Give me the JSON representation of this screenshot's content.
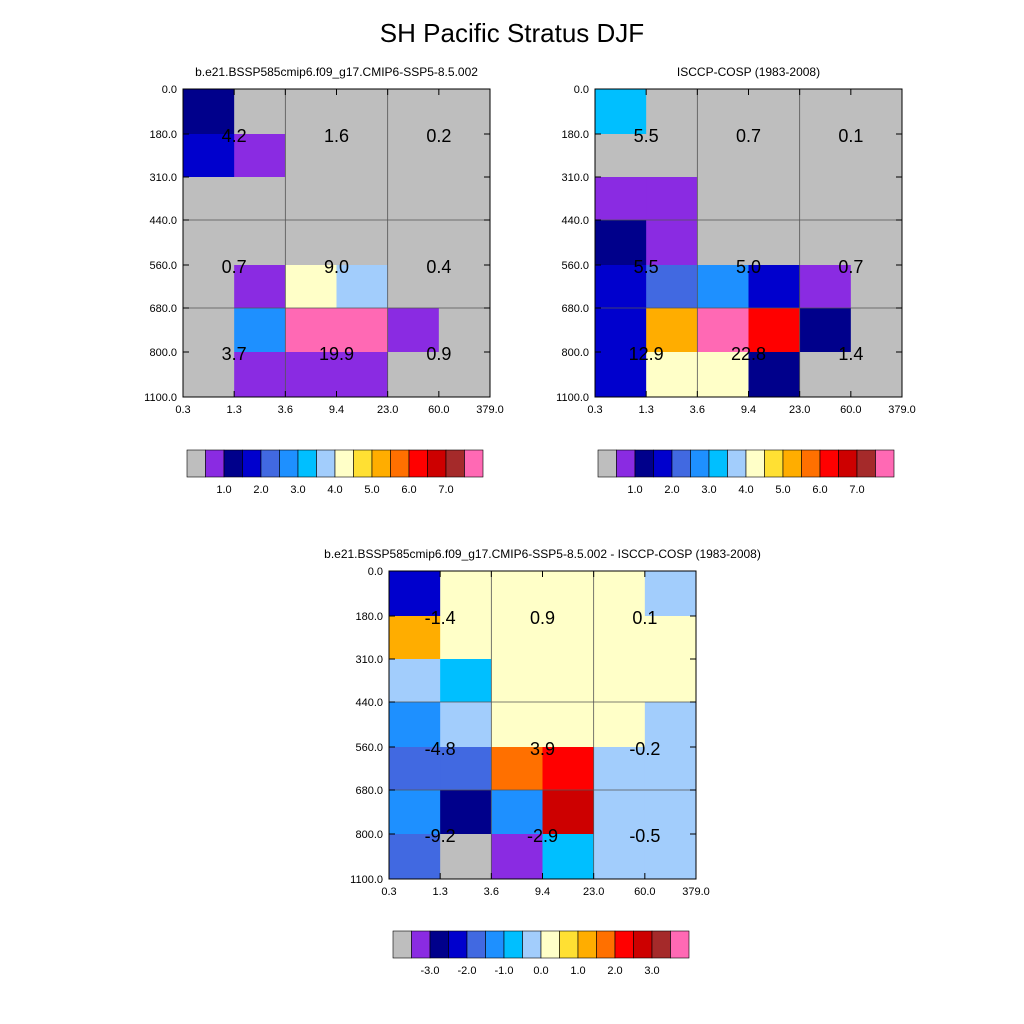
{
  "title": "SH Pacific Stratus DJF",
  "colors": {
    "gray": "#bebebe",
    "purple": "#8a2be2",
    "navy": "#00008b",
    "blue": "#0000cd",
    "royal": "#4169e1",
    "dodger": "#1e90ff",
    "sky": "#00bfff",
    "lightblue": "#a2cdfc",
    "cream": "#ffffc8",
    "yellow": "#ffe033",
    "gold": "#ffad00",
    "orange": "#ff7000",
    "red": "#ff0000",
    "darkred": "#cd0000",
    "brown": "#a52a2a",
    "pink": "#ff69b4"
  },
  "legend_colors": [
    "gray",
    "purple",
    "navy",
    "blue",
    "royal",
    "dodger",
    "sky",
    "lightblue",
    "cream",
    "yellow",
    "gold",
    "orange",
    "red",
    "darkred",
    "brown",
    "pink"
  ],
  "chart_data": [
    {
      "type": "heatmap",
      "title": "b.e21.BSSP585cmip6.f09_g17.CMIP6-SSP5-8.5.002",
      "xticks": [
        "0.3",
        "1.3",
        "3.6",
        "9.4",
        "23.0",
        "60.0",
        "379.0"
      ],
      "yticks": [
        "0.0",
        "180.0",
        "310.0",
        "440.0",
        "560.0",
        "680.0",
        "800.0",
        "1100.0"
      ],
      "cells": [
        [
          "navy",
          "gray",
          "gray",
          "gray",
          "gray",
          "gray"
        ],
        [
          "blue",
          "purple",
          "gray",
          "gray",
          "gray",
          "gray"
        ],
        [
          "gray",
          "gray",
          "gray",
          "gray",
          "gray",
          "gray"
        ],
        [
          "gray",
          "gray",
          "gray",
          "gray",
          "gray",
          "gray"
        ],
        [
          "gray",
          "purple",
          "cream",
          "lightblue",
          "gray",
          "gray"
        ],
        [
          "gray",
          "dodger",
          "pink",
          "pink",
          "purple",
          "gray"
        ],
        [
          "gray",
          "purple",
          "purple",
          "purple",
          "gray",
          "gray"
        ]
      ],
      "values": [
        [
          "4.2",
          "1.6",
          "0.2"
        ],
        [
          "0.7",
          "9.0",
          "0.4"
        ],
        [
          "3.7",
          "19.9",
          "0.9"
        ]
      ],
      "legend_ticks": [
        "1.0",
        "2.0",
        "3.0",
        "4.0",
        "5.0",
        "6.0",
        "7.0"
      ]
    },
    {
      "type": "heatmap",
      "title": "ISCCP-COSP (1983-2008)",
      "xticks": [
        "0.3",
        "1.3",
        "3.6",
        "9.4",
        "23.0",
        "60.0",
        "379.0"
      ],
      "yticks": [
        "0.0",
        "180.0",
        "310.0",
        "440.0",
        "560.0",
        "680.0",
        "800.0",
        "1100.0"
      ],
      "cells": [
        [
          "sky",
          "gray",
          "gray",
          "gray",
          "gray",
          "gray"
        ],
        [
          "gray",
          "gray",
          "gray",
          "gray",
          "gray",
          "gray"
        ],
        [
          "purple",
          "purple",
          "gray",
          "gray",
          "gray",
          "gray"
        ],
        [
          "navy",
          "purple",
          "gray",
          "gray",
          "gray",
          "gray"
        ],
        [
          "blue",
          "royal",
          "dodger",
          "blue",
          "purple",
          "gray"
        ],
        [
          "blue",
          "gold",
          "pink",
          "red",
          "navy",
          "gray"
        ],
        [
          "blue",
          "cream",
          "cream",
          "navy",
          "gray",
          "gray"
        ]
      ],
      "values": [
        [
          "5.5",
          "0.7",
          "0.1"
        ],
        [
          "5.5",
          "5.0",
          "0.7"
        ],
        [
          "12.9",
          "22.8",
          "1.4"
        ]
      ],
      "legend_ticks": [
        "1.0",
        "2.0",
        "3.0",
        "4.0",
        "5.0",
        "6.0",
        "7.0"
      ]
    },
    {
      "type": "heatmap",
      "title": "b.e21.BSSP585cmip6.f09_g17.CMIP6-SSP5-8.5.002 - ISCCP-COSP (1983-2008)",
      "xticks": [
        "0.3",
        "1.3",
        "3.6",
        "9.4",
        "23.0",
        "60.0",
        "379.0"
      ],
      "yticks": [
        "0.0",
        "180.0",
        "310.0",
        "440.0",
        "560.0",
        "680.0",
        "800.0",
        "1100.0"
      ],
      "cells": [
        [
          "blue",
          "cream",
          "cream",
          "cream",
          "cream",
          "lightblue"
        ],
        [
          "gold",
          "cream",
          "cream",
          "cream",
          "cream",
          "cream"
        ],
        [
          "lightblue",
          "sky",
          "cream",
          "cream",
          "cream",
          "cream"
        ],
        [
          "dodger",
          "lightblue",
          "cream",
          "cream",
          "cream",
          "lightblue"
        ],
        [
          "royal",
          "royal",
          "orange",
          "red",
          "lightblue",
          "lightblue"
        ],
        [
          "dodger",
          "navy",
          "dodger",
          "darkred",
          "lightblue",
          "lightblue"
        ],
        [
          "royal",
          "gray",
          "purple",
          "sky",
          "lightblue",
          "lightblue"
        ]
      ],
      "values": [
        [
          "-1.4",
          "0.9",
          "0.1"
        ],
        [
          "-4.8",
          "3.9",
          "-0.2"
        ],
        [
          "-9.2",
          "-2.9",
          "-0.5"
        ]
      ],
      "legend_ticks": [
        "-3.0",
        "-2.0",
        "-1.0",
        "0.0",
        "1.0",
        "2.0",
        "3.0"
      ]
    }
  ]
}
